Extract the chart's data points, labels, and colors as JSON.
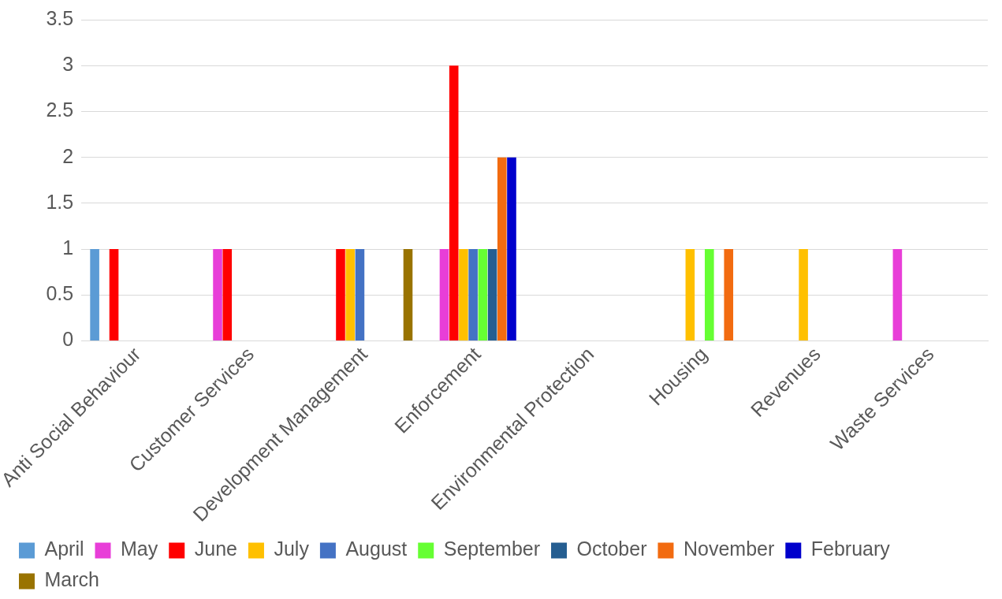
{
  "chart_data": {
    "type": "bar",
    "categories": [
      "Anti Social Behaviour",
      "Customer Services",
      "Development Management",
      "Enforcement",
      "Environmental Protection",
      "Housing",
      "Revenues",
      "Waste Services"
    ],
    "series": [
      {
        "name": "April",
        "color": "#5b9bd5",
        "values": [
          1,
          null,
          null,
          null,
          null,
          null,
          null,
          null
        ]
      },
      {
        "name": "May",
        "color": "#e83ed8",
        "values": [
          null,
          1,
          null,
          1,
          null,
          null,
          null,
          1
        ]
      },
      {
        "name": "June",
        "color": "#ff0000",
        "values": [
          1,
          1,
          1,
          3,
          null,
          null,
          null,
          null
        ]
      },
      {
        "name": "July",
        "color": "#ffc000",
        "values": [
          null,
          null,
          1,
          1,
          null,
          1,
          1,
          null
        ]
      },
      {
        "name": "August",
        "color": "#4472c4",
        "values": [
          null,
          null,
          1,
          1,
          null,
          null,
          null,
          null
        ]
      },
      {
        "name": "September",
        "color": "#66ff33",
        "values": [
          null,
          null,
          null,
          1,
          null,
          1,
          null,
          null
        ]
      },
      {
        "name": "October",
        "color": "#255e91",
        "values": [
          null,
          null,
          null,
          1,
          null,
          null,
          null,
          null
        ]
      },
      {
        "name": "November",
        "color": "#f26b10",
        "values": [
          null,
          null,
          null,
          2,
          null,
          1,
          null,
          null
        ]
      },
      {
        "name": "February",
        "color": "#0000cc",
        "values": [
          null,
          null,
          null,
          2,
          null,
          null,
          null,
          null
        ]
      },
      {
        "name": "March",
        "color": "#997300",
        "values": [
          null,
          null,
          1,
          null,
          null,
          null,
          null,
          null
        ]
      }
    ],
    "ylim": [
      0,
      3.5
    ],
    "yticks": [
      0,
      0.5,
      1,
      1.5,
      2,
      2.5,
      3,
      3.5
    ],
    "grid": "y",
    "legend": "bottom"
  }
}
